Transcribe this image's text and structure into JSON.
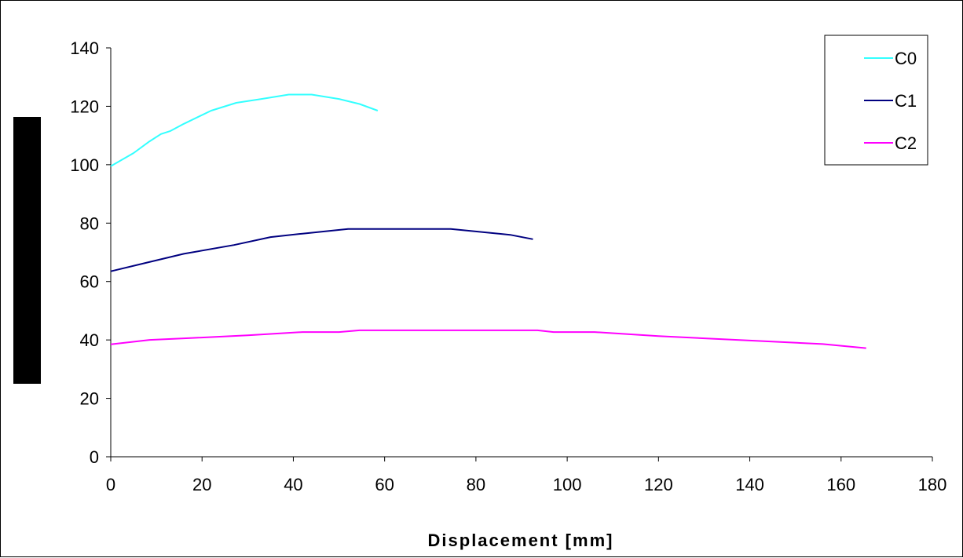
{
  "chart_data": {
    "type": "line",
    "title": "",
    "xlabel": "Displacement [mm]",
    "ylabel": "",
    "xlim": [
      0,
      180
    ],
    "ylim": [
      0,
      140
    ],
    "x_ticks": [
      0,
      20,
      40,
      60,
      80,
      100,
      120,
      140,
      160,
      180
    ],
    "y_ticks": [
      0,
      20,
      40,
      60,
      80,
      100,
      120,
      140
    ],
    "grid": false,
    "legend_position": "top-right",
    "series": [
      {
        "name": "C0",
        "color": "#33ffff",
        "points": [
          [
            0,
            99.5
          ],
          [
            5,
            104
          ],
          [
            8.5,
            108
          ],
          [
            11,
            110.5
          ],
          [
            13,
            111.5
          ],
          [
            16,
            114
          ],
          [
            22,
            118.5
          ],
          [
            27.5,
            121.2
          ],
          [
            33,
            122.5
          ],
          [
            39,
            124
          ],
          [
            44,
            124
          ],
          [
            50,
            122.5
          ],
          [
            54.5,
            120.8
          ],
          [
            58.5,
            118.5
          ]
        ]
      },
      {
        "name": "C1",
        "color": "#000080",
        "points": [
          [
            0,
            63.5
          ],
          [
            8,
            66.5
          ],
          [
            16,
            69.5
          ],
          [
            27,
            72.5
          ],
          [
            35,
            75.2
          ],
          [
            42,
            76.4
          ],
          [
            52,
            78
          ],
          [
            62,
            78
          ],
          [
            74.5,
            78
          ],
          [
            87.5,
            76
          ],
          [
            92.5,
            74.5
          ]
        ]
      },
      {
        "name": "C2",
        "color": "#ff00ff",
        "points": [
          [
            0,
            38.5
          ],
          [
            8.5,
            40
          ],
          [
            17,
            40.6
          ],
          [
            30,
            41.6
          ],
          [
            42,
            42.7
          ],
          [
            50,
            42.7
          ],
          [
            54.5,
            43.3
          ],
          [
            75,
            43.3
          ],
          [
            93.5,
            43.3
          ],
          [
            97,
            42.7
          ],
          [
            106,
            42.7
          ],
          [
            120,
            41.3
          ],
          [
            140,
            39.8
          ],
          [
            156,
            38.6
          ],
          [
            165.5,
            37.2
          ]
        ]
      }
    ]
  }
}
